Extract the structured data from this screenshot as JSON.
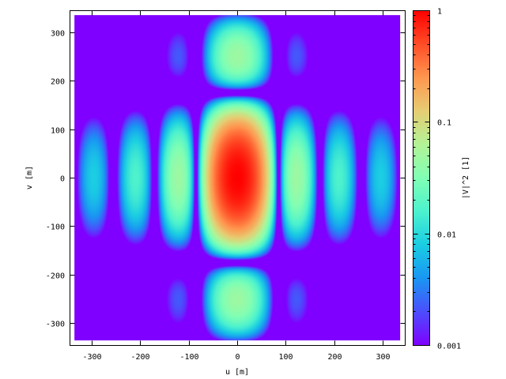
{
  "chart_data": {
    "type": "heatmap",
    "xlabel": "u [m]",
    "ylabel": "v [m]",
    "colorbar_label": "|V|^2 [1]",
    "xlim": [
      -345,
      345
    ],
    "ylim": [
      -345,
      345
    ],
    "x_ticks": [
      -300,
      -200,
      -100,
      0,
      100,
      200,
      300
    ],
    "y_ticks": [
      -300,
      -200,
      -100,
      0,
      100,
      200,
      300
    ],
    "x_tick_labels": [
      "-300",
      "-200",
      "-100",
      "0",
      "100",
      "200",
      "300"
    ],
    "y_tick_labels": [
      "-300",
      "-200",
      "-100",
      "0",
      "100",
      "200",
      "300"
    ],
    "data_extent": {
      "x": [
        -335,
        335
      ],
      "y": [
        -335,
        335
      ]
    },
    "colorbar": {
      "scale": "log",
      "range": [
        0.001,
        1
      ],
      "ticks": [
        0.001,
        0.01,
        0.1,
        1
      ],
      "tick_labels": [
        "0.001",
        "0.01",
        "0.1",
        "1"
      ],
      "colormap": [
        "#8000ff",
        "#4c4dfc",
        "#1996f3",
        "#1acce3",
        "#4cf2ce",
        "#80ffb4",
        "#b2f396",
        "#e6cd73",
        "#ff964f",
        "#ff4d27",
        "#ff0000"
      ]
    },
    "grid": false,
    "pattern": "visibility |V|^2 of a rectangular aperture: sinc^2(u) * sinc^2(v)",
    "peak": {
      "u": 0,
      "v": 0,
      "value": 1
    }
  }
}
